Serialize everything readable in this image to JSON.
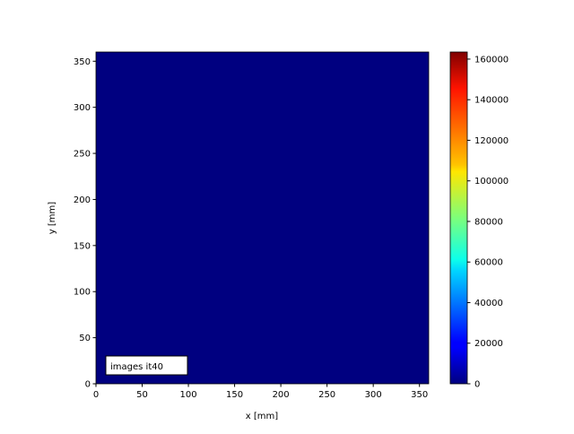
{
  "chart_data": {
    "type": "heatmap",
    "title": "",
    "xlabel": "x [mm]",
    "ylabel": "y [mm]",
    "xlim": [
      0,
      360
    ],
    "ylim": [
      0,
      360
    ],
    "xticks": [
      0,
      50,
      100,
      150,
      200,
      250,
      300,
      350
    ],
    "yticks": [
      0,
      50,
      100,
      150,
      200,
      250,
      300,
      350
    ],
    "colormap": "jet",
    "field_value": 0,
    "field_color": "#000080",
    "colorbar": {
      "range": [
        0,
        163500
      ],
      "ticks": [
        0,
        20000,
        40000,
        60000,
        80000,
        100000,
        120000,
        140000,
        160000
      ]
    },
    "annotation": "images it40"
  }
}
